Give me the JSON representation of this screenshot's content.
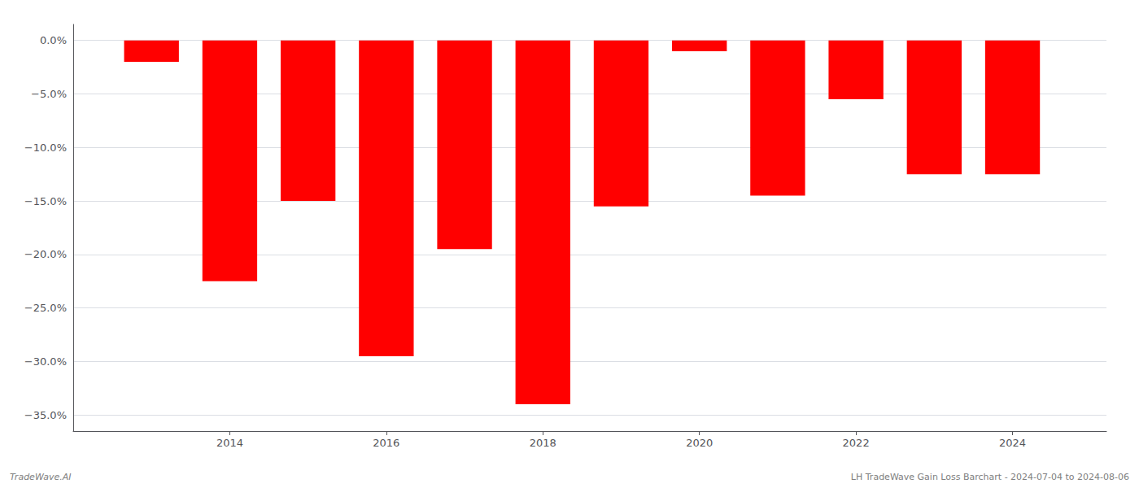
{
  "chart_data": {
    "type": "bar",
    "x": [
      2013,
      2014,
      2015,
      2016,
      2017,
      2018,
      2019,
      2020,
      2021,
      2022,
      2023,
      2024
    ],
    "values": [
      -2.0,
      -22.5,
      -15.0,
      -29.5,
      -19.5,
      -34.0,
      -15.5,
      -1.0,
      -14.5,
      -5.5,
      -12.5,
      -12.5
    ],
    "color": "#ff0000",
    "xlim": [
      2012.0,
      2025.2
    ],
    "xticks": [
      2014,
      2016,
      2018,
      2020,
      2022,
      2024
    ],
    "ylim": [
      -36.5,
      1.5
    ],
    "yticks": [
      {
        "value": 0.0,
        "label": "0.0%"
      },
      {
        "value": -5.0,
        "label": "−5.0%"
      },
      {
        "value": -10.0,
        "label": "−10.0%"
      },
      {
        "value": -15.0,
        "label": "−15.0%"
      },
      {
        "value": -20.0,
        "label": "−20.0%"
      },
      {
        "value": -25.0,
        "label": "−25.0%"
      },
      {
        "value": -30.0,
        "label": "−30.0%"
      },
      {
        "value": -35.0,
        "label": "−35.0%"
      }
    ],
    "grid": true,
    "annotations": [
      "TradeWave.AI",
      "LH TradeWave Gain Loss Barchart - 2024-07-04 to 2024-08-06"
    ]
  }
}
